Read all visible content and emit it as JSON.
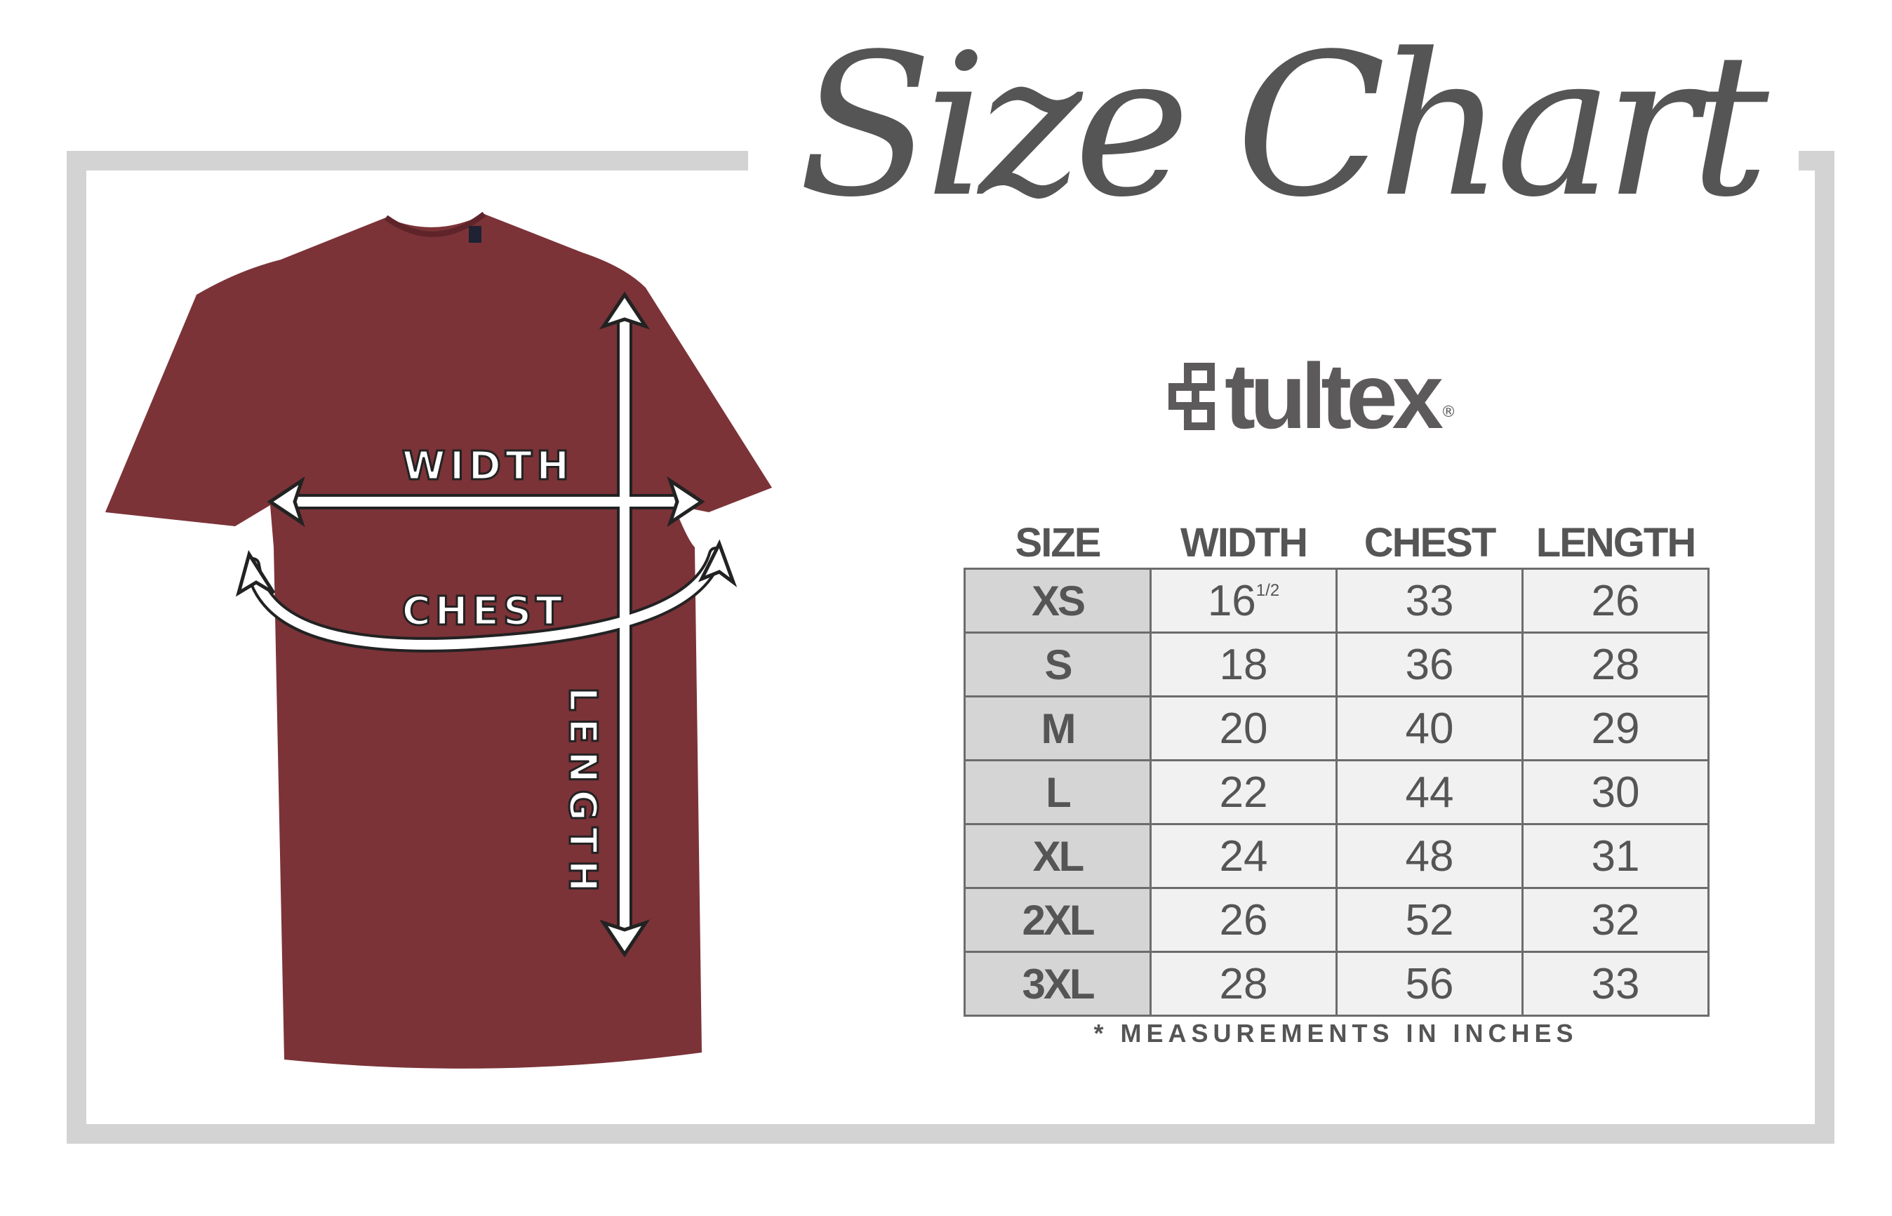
{
  "title": "Size Chart",
  "brand": {
    "name": "tultex",
    "registered": "®"
  },
  "shirt": {
    "color": "#7b3338",
    "labels": {
      "width": "WIDTH",
      "chest": "CHEST",
      "length": "LENGTH"
    }
  },
  "table": {
    "headers": [
      "SIZE",
      "WIDTH",
      "CHEST",
      "LENGTH"
    ],
    "rows": [
      {
        "size": "XS",
        "width": "16",
        "width_fraction": "1/2",
        "chest": "33",
        "length": "26"
      },
      {
        "size": "S",
        "width": "18",
        "chest": "36",
        "length": "28"
      },
      {
        "size": "M",
        "width": "20",
        "chest": "40",
        "length": "29"
      },
      {
        "size": "L",
        "width": "22",
        "chest": "44",
        "length": "30"
      },
      {
        "size": "XL",
        "width": "24",
        "chest": "48",
        "length": "31"
      },
      {
        "size": "2XL",
        "width": "26",
        "chest": "52",
        "length": "32"
      },
      {
        "size": "3XL",
        "width": "28",
        "chest": "56",
        "length": "33"
      }
    ]
  },
  "footnote": "* MEASUREMENTS IN INCHES"
}
